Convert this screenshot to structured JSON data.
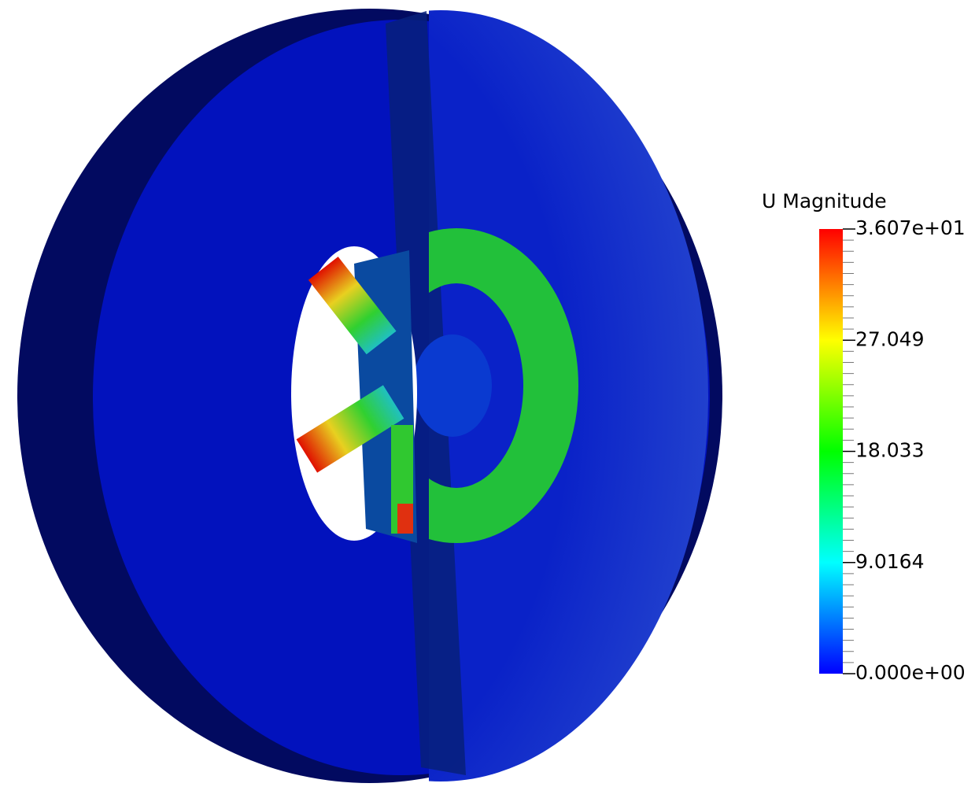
{
  "colorbar": {
    "title": "U Magnitude",
    "range": [
      0,
      36.07
    ],
    "ticks": [
      {
        "value": 36.07,
        "label": "3.607e+01"
      },
      27.049,
      18.033,
      9.0164,
      {
        "value": 0,
        "label": "0.000e+00"
      }
    ]
  }
}
